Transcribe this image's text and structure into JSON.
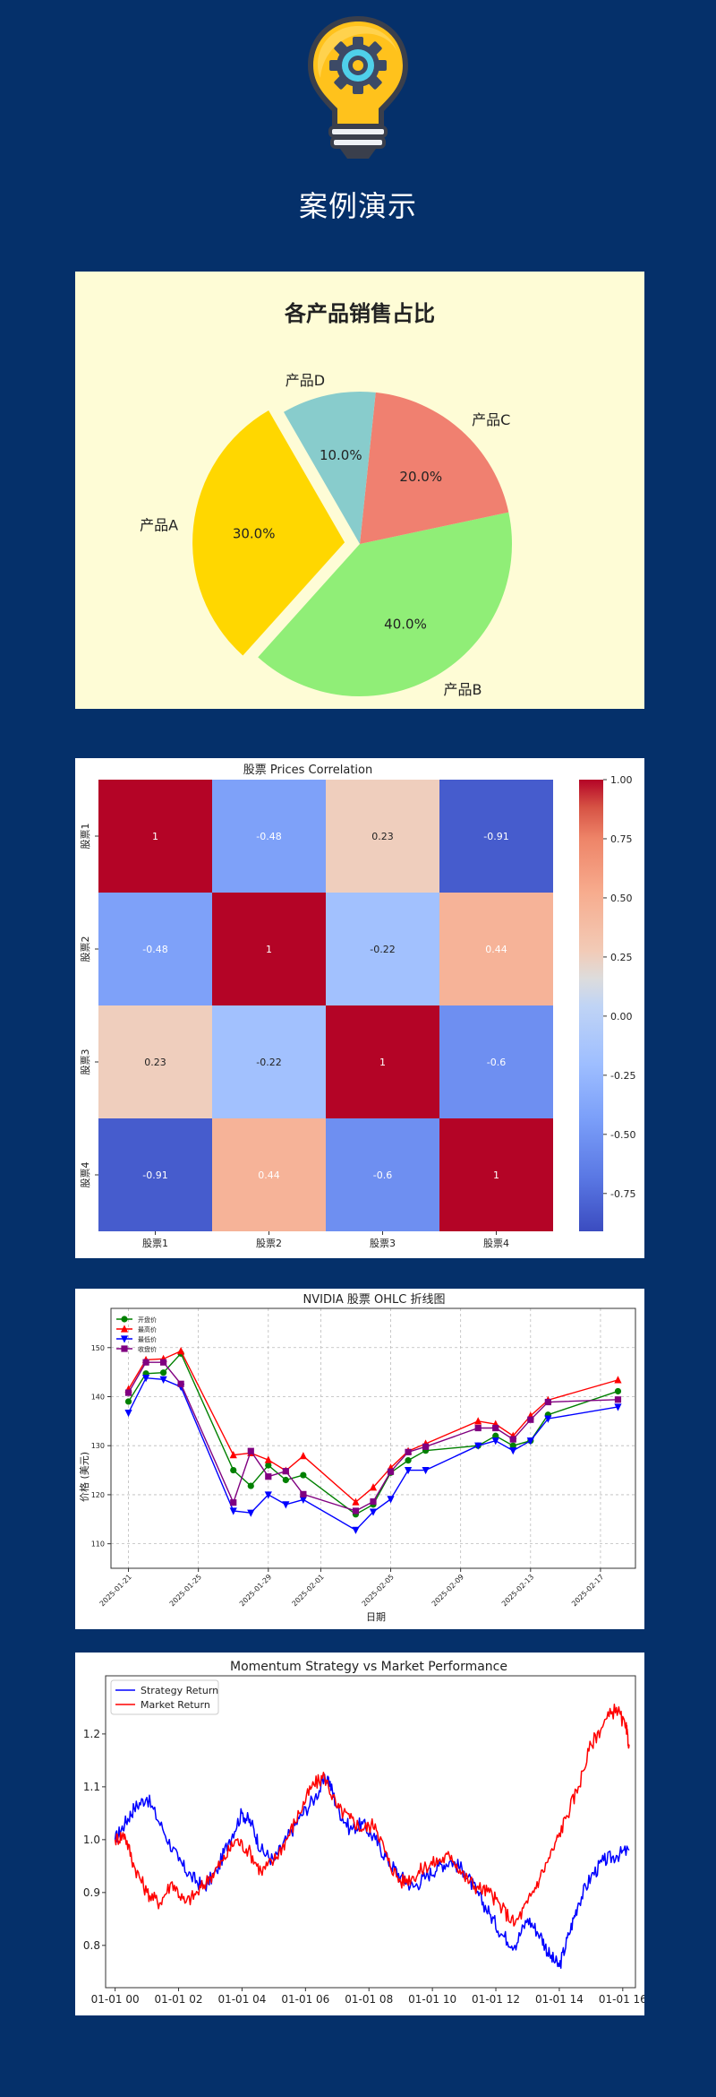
{
  "page": {
    "title": "案例演示",
    "background": "#05306a"
  },
  "hero": {
    "icon": "lightbulb-gear-icon",
    "title": "案例演示"
  },
  "charts": [
    {
      "type": "pie",
      "title": "各产品销售占比",
      "labels": [
        "产品A",
        "产品B",
        "产品C",
        "产品D"
      ],
      "values": [
        30.0,
        40.0,
        20.0,
        10.0
      ],
      "value_labels": [
        "30.0%",
        "40.0%",
        "20.0%",
        "10.0%"
      ],
      "colors": [
        "#ffd700",
        "#90ee77",
        "#f08070",
        "#88cccc"
      ],
      "explode": [
        0.1,
        0,
        0,
        0
      ],
      "start_angle_deg": 120,
      "background": "#fefcd6"
    },
    {
      "type": "heatmap",
      "title": "股票 Prices Correlation",
      "rows": [
        "股票1",
        "股票2",
        "股票3",
        "股票4"
      ],
      "cols": [
        "股票1",
        "股票2",
        "股票3",
        "股票4"
      ],
      "matrix": [
        [
          1,
          -0.48,
          0.23,
          -0.91
        ],
        [
          -0.48,
          1,
          -0.22,
          0.44
        ],
        [
          0.23,
          -0.22,
          1,
          -0.6
        ],
        [
          -0.91,
          0.44,
          -0.6,
          1
        ]
      ],
      "cell_labels": [
        [
          "1",
          "-0.48",
          "0.23",
          "-0.91"
        ],
        [
          "-0.48",
          "1",
          "-0.22",
          "0.44"
        ],
        [
          "0.23",
          "-0.22",
          "1",
          "-0.6"
        ],
        [
          "-0.91",
          "0.44",
          "-0.6",
          "1"
        ]
      ],
      "colormap": "coolwarm",
      "colorbar_range": [
        -0.91,
        1
      ],
      "colorbar_ticks": [
        1.0,
        0.75,
        0.5,
        0.25,
        0.0,
        -0.25,
        -0.5,
        -0.75
      ],
      "colorbar_tick_labels": [
        "1.00",
        "0.75",
        "0.50",
        "0.25",
        "0.00",
        "-0.25",
        "-0.50",
        "-0.75"
      ]
    },
    {
      "type": "line",
      "title": "NVIDIA 股票 OHLC 折线图",
      "xlabel": "日期",
      "ylabel": "价格 (美元)",
      "x": [
        "2025-01-21",
        "2025-01-22",
        "2025-01-23",
        "2025-01-24",
        "2025-01-27",
        "2025-01-28",
        "2025-01-29",
        "2025-01-30",
        "2025-01-31",
        "2025-02-03",
        "2025-02-04",
        "2025-02-05",
        "2025-02-06",
        "2025-02-07",
        "2025-02-10",
        "2025-02-11",
        "2025-02-12",
        "2025-02-13",
        "2025-02-14",
        "2025-02-18"
      ],
      "xlim": [
        "2025-01-20",
        "2025-02-19"
      ],
      "x_ticks": [
        "2025-01-21",
        "2025-01-25",
        "2025-01-29",
        "2025-02-01",
        "2025-02-05",
        "2025-02-09",
        "2025-02-13",
        "2025-02-17"
      ],
      "ylim": [
        105,
        158
      ],
      "y_ticks": [
        110,
        120,
        130,
        140,
        150
      ],
      "grid": true,
      "legend": "top-left",
      "series": [
        {
          "name": "开盘价",
          "color": "#008000",
          "marker": "circle",
          "values": [
            139.0,
            144.7,
            144.9,
            148.8,
            125.0,
            121.8,
            126.0,
            123.0,
            124.0,
            116.0,
            118.0,
            124.5,
            127.0,
            129.0,
            130.0,
            132.0,
            130.0,
            131.0,
            136.3,
            141.1
          ]
        },
        {
          "name": "最高价",
          "color": "#ff0000",
          "marker": "triangle-up",
          "values": [
            141.5,
            147.5,
            147.7,
            149.3,
            128.1,
            128.5,
            127.1,
            124.9,
            127.9,
            118.5,
            121.5,
            125.5,
            128.9,
            130.4,
            135.0,
            134.4,
            132.0,
            136.1,
            139.3,
            143.4
          ]
        },
        {
          "name": "最低价",
          "color": "#0000ff",
          "marker": "triangle-down",
          "values": [
            136.7,
            143.8,
            143.5,
            142.0,
            116.7,
            116.3,
            120.0,
            118.0,
            119.0,
            112.8,
            116.5,
            119.1,
            125.0,
            125.0,
            130.0,
            131.0,
            129.0,
            131.0,
            135.5,
            137.9
          ]
        },
        {
          "name": "收盘价",
          "color": "#800080",
          "marker": "square",
          "values": [
            140.8,
            147.0,
            147.0,
            142.6,
            118.4,
            128.9,
            123.7,
            124.8,
            120.1,
            116.7,
            118.6,
            124.7,
            128.7,
            129.8,
            133.6,
            133.6,
            131.3,
            135.3,
            138.9,
            139.4
          ]
        }
      ]
    },
    {
      "type": "line",
      "title": "Momentum Strategy vs Market Performance",
      "xlim": [
        -0.3,
        16.4
      ],
      "ylim": [
        0.72,
        1.31
      ],
      "y_ticks": [
        0.8,
        0.9,
        1.0,
        1.1,
        1.2
      ],
      "x_ticks": [
        0,
        2,
        4,
        6,
        8,
        10,
        12,
        14,
        16
      ],
      "x_tick_labels": [
        "01-01 00",
        "01-01 02",
        "01-01 04",
        "01-01 06",
        "01-01 08",
        "01-01 10",
        "01-01 12",
        "01-01 14",
        "01-01 16"
      ],
      "legend": "top-left",
      "series": [
        {
          "name": "Strategy Return",
          "color": "#0000ff",
          "x": [
            0,
            0.3,
            0.6,
            1.0,
            1.5,
            2.0,
            2.4,
            2.8,
            3.2,
            3.6,
            4.0,
            4.3,
            4.6,
            5.0,
            5.4,
            5.8,
            6.3,
            6.7,
            7.0,
            7.4,
            7.8,
            8.2,
            8.6,
            9.0,
            9.4,
            9.8,
            10.2,
            10.6,
            11.0,
            11.4,
            11.8,
            12.2,
            12.6,
            13.0,
            13.4,
            13.7,
            14.0,
            14.3,
            14.6,
            15.0,
            15.4,
            15.8,
            16.2
          ],
          "values": [
            1.0,
            1.03,
            1.06,
            1.08,
            1.02,
            0.96,
            0.93,
            0.91,
            0.94,
            1.0,
            1.05,
            1.03,
            0.98,
            0.96,
            1.0,
            1.04,
            1.08,
            1.12,
            1.06,
            1.02,
            1.03,
            1.0,
            0.96,
            0.93,
            0.91,
            0.93,
            0.95,
            0.96,
            0.94,
            0.9,
            0.86,
            0.82,
            0.8,
            0.85,
            0.82,
            0.78,
            0.76,
            0.82,
            0.88,
            0.93,
            0.96,
            0.97,
            0.98
          ]
        },
        {
          "name": "Market Return",
          "color": "#ff0000",
          "x": [
            0,
            0.3,
            0.6,
            1.0,
            1.4,
            1.8,
            2.2,
            2.6,
            3.0,
            3.4,
            3.8,
            4.2,
            4.6,
            5.0,
            5.4,
            5.8,
            6.2,
            6.6,
            7.0,
            7.4,
            7.8,
            8.2,
            8.6,
            9.0,
            9.4,
            9.8,
            10.2,
            10.6,
            11.0,
            11.4,
            11.8,
            12.2,
            12.6,
            13.0,
            13.4,
            13.8,
            14.2,
            14.6,
            15.0,
            15.4,
            15.8,
            16.1,
            16.2
          ],
          "values": [
            1.0,
            1.01,
            0.95,
            0.9,
            0.88,
            0.92,
            0.88,
            0.9,
            0.93,
            0.96,
            1.0,
            0.98,
            0.94,
            0.96,
            1.0,
            1.05,
            1.1,
            1.12,
            1.06,
            1.04,
            1.02,
            1.03,
            0.96,
            0.92,
            0.93,
            0.95,
            0.96,
            0.97,
            0.93,
            0.91,
            0.9,
            0.87,
            0.84,
            0.88,
            0.93,
            0.98,
            1.04,
            1.1,
            1.18,
            1.22,
            1.25,
            1.21,
            1.18
          ]
        }
      ]
    }
  ]
}
